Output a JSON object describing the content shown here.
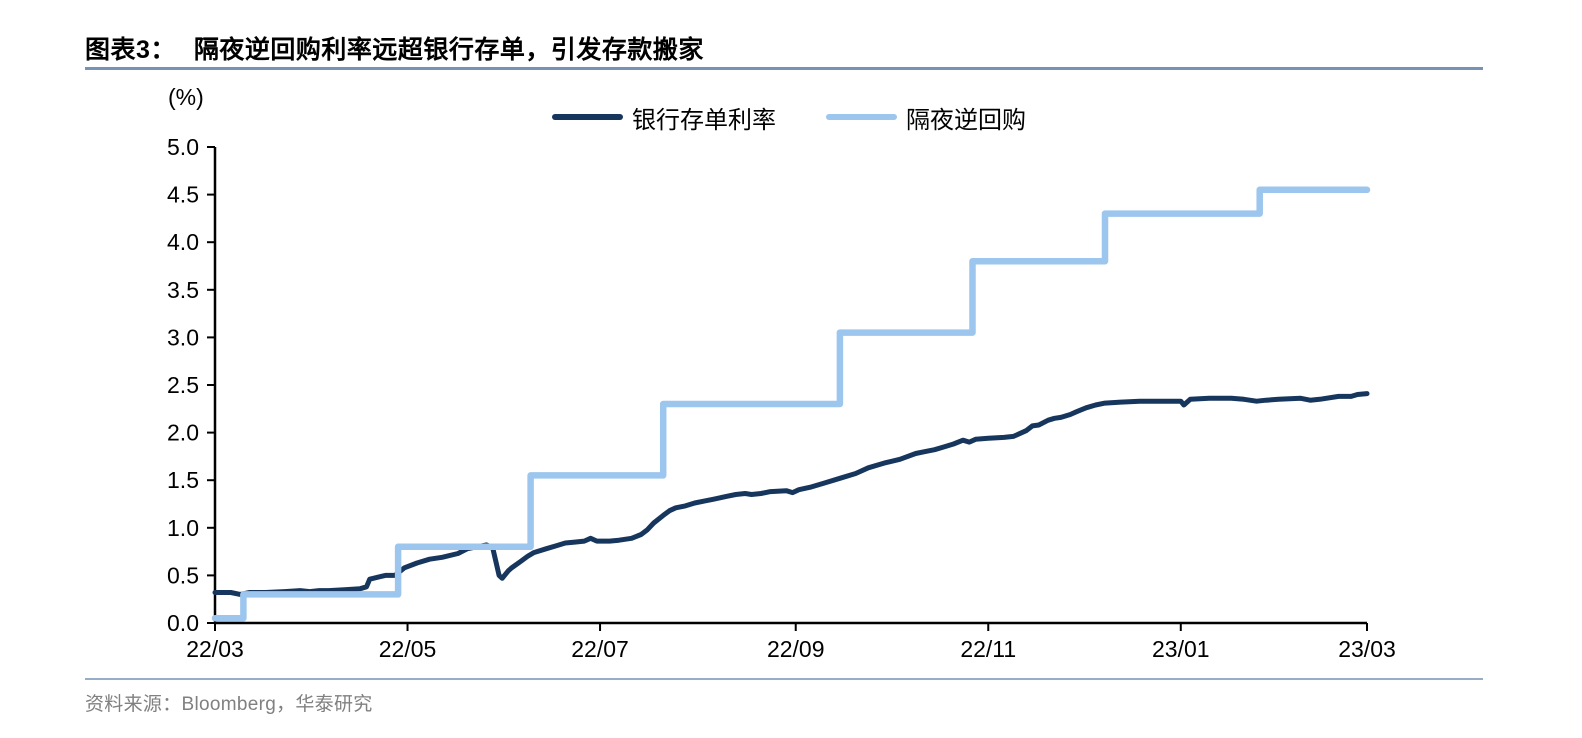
{
  "page": {
    "title_prefix": "图表3：",
    "title": "隔夜逆回购利率远超银行存单，引发存款搬家",
    "source": "资料来源：Bloomberg，华泰研究"
  },
  "colors": {
    "cd_line": "#17365D",
    "rrp_line": "#9CC6EE",
    "title_rule": "#7692B4",
    "footer_rule": "#97ACC7",
    "source_text": "#808080",
    "axis": "#000000",
    "tick_text": "#000000"
  },
  "chart_data": {
    "type": "line",
    "unit_label": "(%)",
    "grid": false,
    "legend_position": "top-center",
    "x_range": [
      "2022-03-08",
      "2023-03-08"
    ],
    "ylim": [
      0,
      5
    ],
    "y_tick_step": 0.5,
    "x_ticks": [
      {
        "date": "2022-03-08",
        "label": "22/03"
      },
      {
        "date": "2022-05-08",
        "label": "22/05"
      },
      {
        "date": "2022-07-08",
        "label": "22/07"
      },
      {
        "date": "2022-09-08",
        "label": "22/09"
      },
      {
        "date": "2022-11-08",
        "label": "22/11"
      },
      {
        "date": "2023-01-08",
        "label": "23/01"
      },
      {
        "date": "2023-03-08",
        "label": "23/03"
      }
    ],
    "series": [
      {
        "key": "cd-rate",
        "name": "银行存单利率",
        "style": "line",
        "color_key": "cd_line",
        "stroke_width": 5,
        "points": [
          [
            "2022-03-08",
            0.32
          ],
          [
            "2022-03-13",
            0.32
          ],
          [
            "2022-03-16",
            0.3
          ],
          [
            "2022-03-19",
            0.32
          ],
          [
            "2022-03-24",
            0.32
          ],
          [
            "2022-03-30",
            0.33
          ],
          [
            "2022-04-04",
            0.34
          ],
          [
            "2022-04-07",
            0.33
          ],
          [
            "2022-04-10",
            0.34
          ],
          [
            "2022-04-13",
            0.34
          ],
          [
            "2022-04-18",
            0.35
          ],
          [
            "2022-04-23",
            0.36
          ],
          [
            "2022-04-25",
            0.38
          ],
          [
            "2022-04-26",
            0.46
          ],
          [
            "2022-05-01",
            0.5
          ],
          [
            "2022-05-04",
            0.5
          ],
          [
            "2022-05-07",
            0.58
          ],
          [
            "2022-05-11",
            0.63
          ],
          [
            "2022-05-15",
            0.67
          ],
          [
            "2022-05-19",
            0.69
          ],
          [
            "2022-05-24",
            0.73
          ],
          [
            "2022-05-27",
            0.78
          ],
          [
            "2022-05-30",
            0.8
          ],
          [
            "2022-06-02",
            0.82
          ],
          [
            "2022-06-04",
            0.79
          ],
          [
            "2022-06-06",
            0.5
          ],
          [
            "2022-06-07",
            0.47
          ],
          [
            "2022-06-09",
            0.55
          ],
          [
            "2022-06-10",
            0.58
          ],
          [
            "2022-06-13",
            0.65
          ],
          [
            "2022-06-15",
            0.7
          ],
          [
            "2022-06-17",
            0.74
          ],
          [
            "2022-06-21",
            0.78
          ],
          [
            "2022-06-24",
            0.81
          ],
          [
            "2022-06-27",
            0.84
          ],
          [
            "2022-06-30",
            0.85
          ],
          [
            "2022-07-03",
            0.86
          ],
          [
            "2022-07-05",
            0.89
          ],
          [
            "2022-07-07",
            0.86
          ],
          [
            "2022-07-11",
            0.86
          ],
          [
            "2022-07-14",
            0.87
          ],
          [
            "2022-07-18",
            0.89
          ],
          [
            "2022-07-21",
            0.93
          ],
          [
            "2022-07-23",
            0.98
          ],
          [
            "2022-07-25",
            1.05
          ],
          [
            "2022-07-28",
            1.13
          ],
          [
            "2022-07-30",
            1.18
          ],
          [
            "2022-08-01",
            1.21
          ],
          [
            "2022-08-04",
            1.23
          ],
          [
            "2022-08-07",
            1.26
          ],
          [
            "2022-08-10",
            1.28
          ],
          [
            "2022-08-13",
            1.3
          ],
          [
            "2022-08-17",
            1.33
          ],
          [
            "2022-08-20",
            1.35
          ],
          [
            "2022-08-23",
            1.36
          ],
          [
            "2022-08-25",
            1.35
          ],
          [
            "2022-08-28",
            1.36
          ],
          [
            "2022-08-31",
            1.38
          ],
          [
            "2022-09-05",
            1.39
          ],
          [
            "2022-09-07",
            1.37
          ],
          [
            "2022-09-09",
            1.4
          ],
          [
            "2022-09-13",
            1.43
          ],
          [
            "2022-09-17",
            1.47
          ],
          [
            "2022-09-22",
            1.52
          ],
          [
            "2022-09-27",
            1.57
          ],
          [
            "2022-10-01",
            1.63
          ],
          [
            "2022-10-06",
            1.68
          ],
          [
            "2022-10-11",
            1.72
          ],
          [
            "2022-10-16",
            1.78
          ],
          [
            "2022-10-19",
            1.8
          ],
          [
            "2022-10-22",
            1.82
          ],
          [
            "2022-10-25",
            1.85
          ],
          [
            "2022-10-28",
            1.88
          ],
          [
            "2022-10-31",
            1.92
          ],
          [
            "2022-11-02",
            1.9
          ],
          [
            "2022-11-04",
            1.93
          ],
          [
            "2022-11-08",
            1.94
          ],
          [
            "2022-11-13",
            1.95
          ],
          [
            "2022-11-16",
            1.96
          ],
          [
            "2022-11-20",
            2.02
          ],
          [
            "2022-11-22",
            2.07
          ],
          [
            "2022-11-24",
            2.08
          ],
          [
            "2022-11-27",
            2.13
          ],
          [
            "2022-11-29",
            2.15
          ],
          [
            "2022-12-01",
            2.16
          ],
          [
            "2022-12-04",
            2.19
          ],
          [
            "2022-12-06",
            2.22
          ],
          [
            "2022-12-09",
            2.26
          ],
          [
            "2022-12-12",
            2.29
          ],
          [
            "2022-12-15",
            2.31
          ],
          [
            "2022-12-20",
            2.32
          ],
          [
            "2022-12-26",
            2.33
          ],
          [
            "2023-01-01",
            2.33
          ],
          [
            "2023-01-08",
            2.33
          ],
          [
            "2023-01-09",
            2.29
          ],
          [
            "2023-01-11",
            2.35
          ],
          [
            "2023-01-17",
            2.36
          ],
          [
            "2023-01-24",
            2.36
          ],
          [
            "2023-01-28",
            2.35
          ],
          [
            "2023-02-01",
            2.33
          ],
          [
            "2023-02-04",
            2.34
          ],
          [
            "2023-02-08",
            2.35
          ],
          [
            "2023-02-15",
            2.36
          ],
          [
            "2023-02-18",
            2.34
          ],
          [
            "2023-02-21",
            2.35
          ],
          [
            "2023-02-27",
            2.38
          ],
          [
            "2023-03-03",
            2.38
          ],
          [
            "2023-03-05",
            2.4
          ],
          [
            "2023-03-08",
            2.41
          ]
        ]
      },
      {
        "key": "rrp-rate",
        "name": "隔夜逆回购",
        "style": "step-after",
        "color_key": "rrp_line",
        "stroke_width": 6.5,
        "points": [
          [
            "2022-03-08",
            0.05
          ],
          [
            "2022-03-17",
            0.3
          ],
          [
            "2022-05-05",
            0.8
          ],
          [
            "2022-06-16",
            1.55
          ],
          [
            "2022-07-28",
            2.3
          ],
          [
            "2022-09-22",
            3.05
          ],
          [
            "2022-11-03",
            3.8
          ],
          [
            "2022-12-15",
            4.3
          ],
          [
            "2023-02-02",
            4.55
          ],
          [
            "2023-03-08",
            4.55
          ]
        ]
      }
    ]
  }
}
